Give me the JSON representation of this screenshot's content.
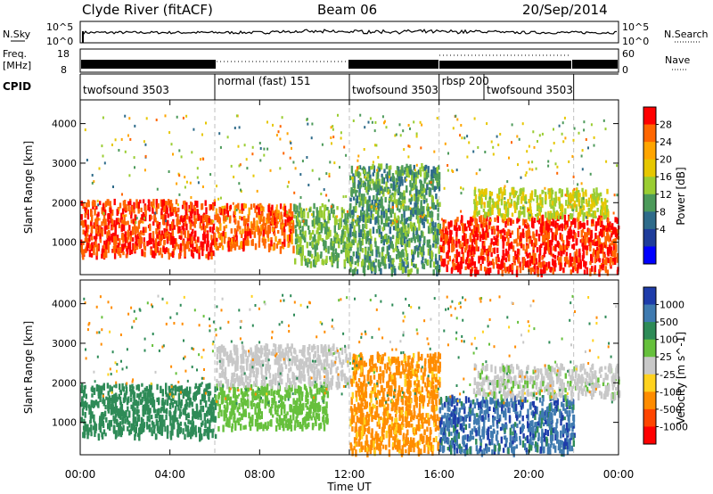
{
  "header": {
    "title": "Clyde River (fitACF)",
    "beam": "Beam 06",
    "date": "20/Sep/2014"
  },
  "noise_panel": {
    "left_label": "N.Sky",
    "right_label": "N.Search",
    "left_ticks": [
      "10^5",
      "10^0"
    ],
    "right_ticks": [
      "10^5",
      "10^0"
    ]
  },
  "freq_panel": {
    "left_label_1": "Freq.",
    "left_label_2": "[MHz]",
    "right_label": "Nave",
    "left_ticks": [
      "18",
      "8"
    ],
    "right_ticks": [
      "60",
      "0"
    ]
  },
  "cpid_panel": {
    "label": "CPID",
    "modes": [
      {
        "name": "twofsound 3503",
        "start_hour": 0,
        "end_hour": 6
      },
      {
        "name": "normal (fast) 151",
        "start_hour": 6,
        "end_hour": 12
      },
      {
        "name": "twofsound 3503",
        "start_hour": 12,
        "end_hour": 16
      },
      {
        "name": "rbsp 200",
        "start_hour": 16,
        "end_hour": 18
      },
      {
        "name": "twofsound 3503",
        "start_hour": 18,
        "end_hour": 22
      }
    ]
  },
  "chart_data": [
    {
      "type": "heatmap",
      "quantity": "Power",
      "ylabel": "Slant Range [km]",
      "ylim": [
        180,
        4600
      ],
      "yticks": [
        1000,
        2000,
        3000,
        4000
      ],
      "colorbar_label": "Power [dB]",
      "colorbar_ticks": [
        "28",
        "24",
        "20",
        "16",
        "12",
        "8",
        "4"
      ],
      "colorbar_colors": [
        "#ff0000",
        "#ff6600",
        "#ffa500",
        "#e6c700",
        "#9acd32",
        "#4c9a5a",
        "#2e6b8a",
        "#1e3c9a",
        "#0000ff"
      ],
      "bands": [
        {
          "start_hour": 0.0,
          "end_hour": 6.0,
          "range_low": 700,
          "range_high": 2100,
          "value_db": 26
        },
        {
          "start_hour": 6.0,
          "end_hour": 9.5,
          "range_low": 900,
          "range_high": 2000,
          "value_db": 24
        },
        {
          "start_hour": 9.5,
          "end_hour": 12.0,
          "range_low": 500,
          "range_high": 2000,
          "value_db": 10
        },
        {
          "start_hour": 12.0,
          "end_hour": 16.0,
          "range_low": 300,
          "range_high": 3000,
          "value_db": 8
        },
        {
          "start_hour": 16.0,
          "end_hour": 24.0,
          "range_low": 300,
          "range_high": 1700,
          "value_db": 27
        },
        {
          "start_hour": 17.5,
          "end_hour": 23.5,
          "range_low": 1700,
          "range_high": 2400,
          "value_db": 14
        }
      ]
    },
    {
      "type": "heatmap",
      "quantity": "Velocity",
      "xlabel": "Time UT",
      "xticks": [
        "00:00",
        "04:00",
        "08:00",
        "12:00",
        "16:00",
        "20:00",
        "00:00"
      ],
      "xlim_hours": [
        0,
        24
      ],
      "ylabel": "Slant Range [km]",
      "ylim": [
        180,
        4600
      ],
      "yticks": [
        1000,
        2000,
        3000,
        4000
      ],
      "colorbar_label": "Velocity [m s^-1]",
      "colorbar_ticks": [
        "1000",
        "500",
        "100",
        "25",
        "-25",
        "-100",
        "-500",
        "-1000"
      ],
      "colorbar_colors": [
        "#1e3caa",
        "#3f7ab0",
        "#2e8b57",
        "#66c03c",
        "#c8c8c8",
        "#ffd21e",
        "#ff8c00",
        "#ff4500",
        "#ff0000"
      ],
      "bands": [
        {
          "start_hour": 0.0,
          "end_hour": 6.0,
          "range_low": 700,
          "range_high": 2000,
          "value_ms": 300
        },
        {
          "start_hour": 6.0,
          "end_hour": 11.0,
          "range_low": 900,
          "range_high": 2000,
          "value_ms": 60
        },
        {
          "start_hour": 6.0,
          "end_hour": 12.0,
          "range_low": 2000,
          "range_high": 3000,
          "value_ms": 0
        },
        {
          "start_hour": 12.0,
          "end_hour": 16.0,
          "range_low": 300,
          "range_high": 2800,
          "value_ms": -150
        },
        {
          "start_hour": 16.0,
          "end_hour": 22.0,
          "range_low": 300,
          "range_high": 1700,
          "value_ms": 800
        },
        {
          "start_hour": 17.5,
          "end_hour": 24.0,
          "range_low": 1700,
          "range_high": 2500,
          "value_ms": 10
        }
      ]
    }
  ]
}
